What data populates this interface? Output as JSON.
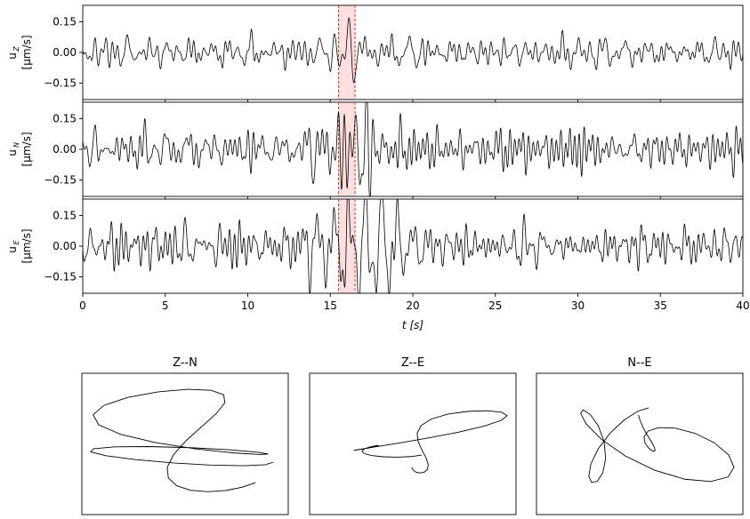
{
  "chart_data": [
    {
      "type": "line",
      "panel": "u_Z",
      "ylabel_main": "u",
      "ylabel_sub": "Z",
      "ylabel_unit": "[μm/s]",
      "xlim": [
        0,
        40
      ],
      "ylim": [
        -0.23,
        0.23
      ],
      "yticks": [
        -0.15,
        0.0,
        0.15
      ],
      "yticklabels": [
        "−0.15",
        "0.00",
        "0.15"
      ],
      "highlight_window": [
        15.5,
        16.5
      ],
      "amp_noise": 0.035,
      "amp_event": 0.14,
      "event_center": 16.0,
      "event_width": 0.7,
      "seed": 11
    },
    {
      "type": "line",
      "panel": "u_N",
      "ylabel_main": "u",
      "ylabel_sub": "N",
      "ylabel_unit": "[μm/s]",
      "xlim": [
        0,
        40
      ],
      "ylim": [
        -0.23,
        0.23
      ],
      "yticks": [
        -0.15,
        0.0,
        0.15
      ],
      "yticklabels": [
        "−0.15",
        "0.00",
        "0.15"
      ],
      "highlight_window": [
        15.5,
        16.5
      ],
      "amp_noise": 0.045,
      "amp_event": 0.12,
      "event_center": 16.3,
      "event_width": 2.5,
      "seed": 23
    },
    {
      "type": "line",
      "panel": "u_E",
      "ylabel_main": "u",
      "ylabel_sub": "E",
      "ylabel_unit": "[μm/s]",
      "xlim": [
        0,
        40
      ],
      "ylim": [
        -0.23,
        0.23
      ],
      "yticks": [
        -0.15,
        0.0,
        0.15
      ],
      "yticklabels": [
        "−0.15",
        "0.00",
        "0.15"
      ],
      "highlight_window": [
        15.5,
        16.5
      ],
      "amp_noise": 0.05,
      "amp_event": 0.16,
      "event_center": 16.8,
      "event_width": 3.0,
      "seed": 37,
      "xlabel": "t [s]",
      "xticks": [
        0,
        5,
        10,
        15,
        20,
        25,
        30,
        35,
        40
      ],
      "xticklabels": [
        "0",
        "5",
        "10",
        "15",
        "20",
        "25",
        "30",
        "35",
        "40"
      ]
    },
    {
      "type": "line",
      "title": "Z--N",
      "hodogram": "Z-N"
    },
    {
      "type": "line",
      "title": "Z--E",
      "hodogram": "Z-E"
    },
    {
      "type": "line",
      "title": "N--E",
      "hodogram": "N-E"
    }
  ]
}
